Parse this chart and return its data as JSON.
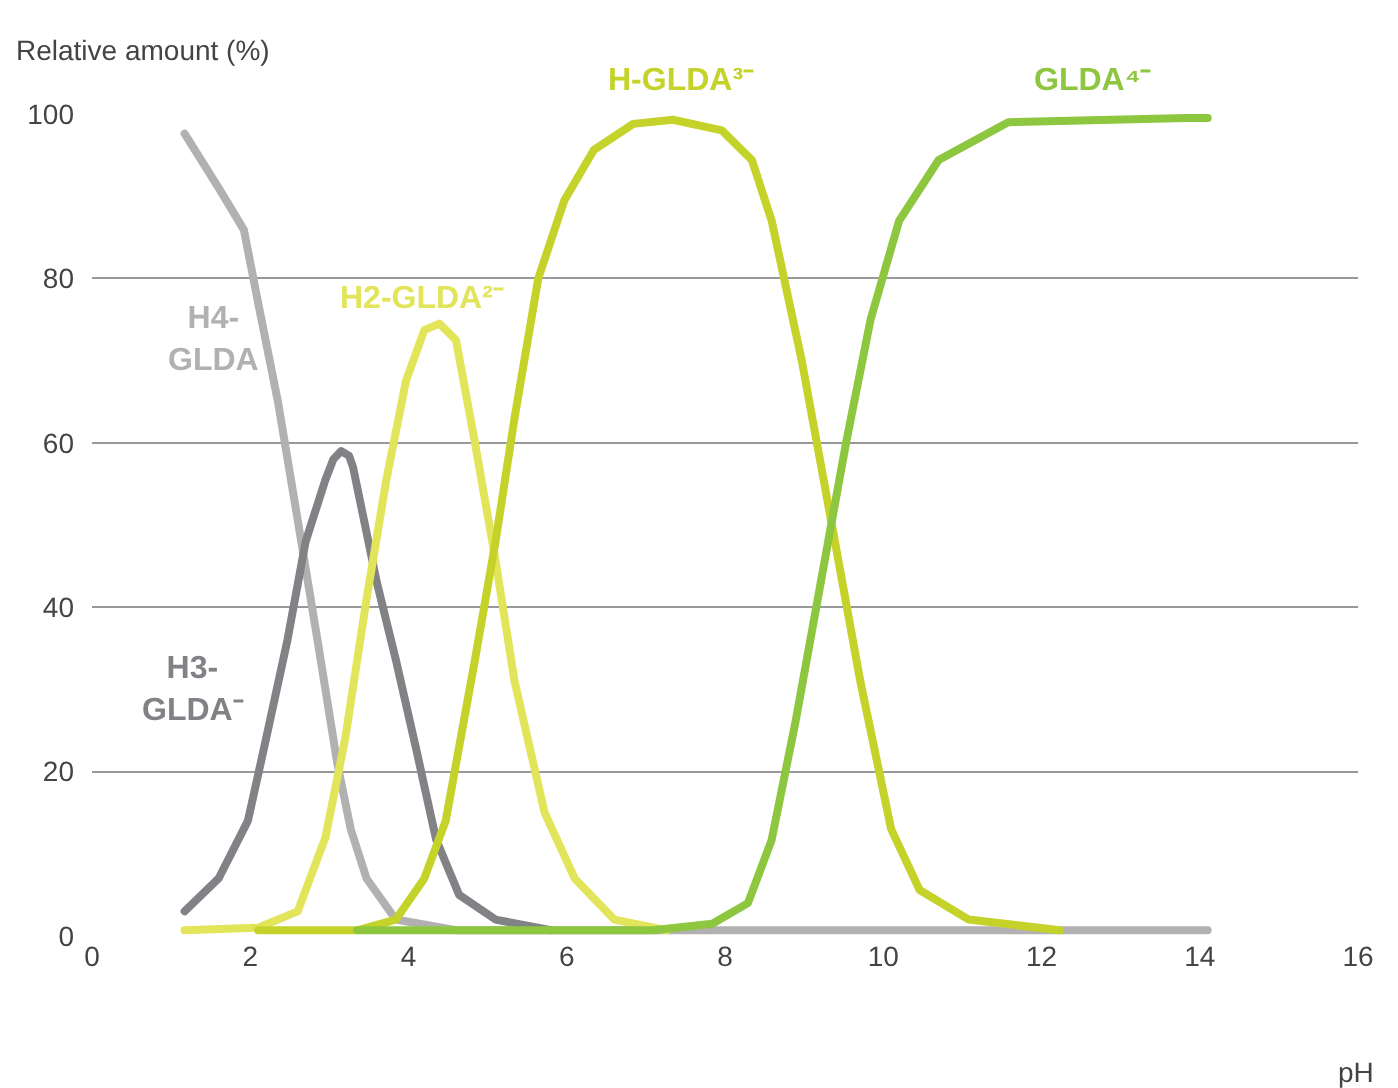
{
  "chart_data": {
    "type": "line",
    "ylabel": "Relative amount (%)",
    "xlabel": "pH",
    "xlim": [
      0,
      16
    ],
    "xticks": [
      0,
      2,
      4,
      6,
      8,
      10,
      12,
      14,
      16
    ],
    "ylim": [
      0,
      100
    ],
    "yticks": [
      0,
      20,
      40,
      60,
      80,
      100
    ],
    "grid": "y",
    "marker": "none",
    "line_style": "solid",
    "series": [
      {
        "color": "#b1b1b1",
        "x": [
          1.17,
          1.6,
          1.92,
          2.1,
          2.35,
          2.6,
          2.85,
          3.1,
          3.27,
          3.47,
          3.84,
          4.6,
          10,
          12,
          14.1
        ],
        "values": [
          97.6,
          91,
          85.9,
          77,
          65,
          50.6,
          36,
          21,
          13,
          7,
          2,
          0.7,
          0.7,
          0.7,
          0.7
        ]
      },
      {
        "color": "#808285",
        "x": [
          1.17,
          1.6,
          1.97,
          2.2,
          2.47,
          2.7,
          2.95,
          3.05,
          3.15,
          3.25,
          3.3,
          3.6,
          3.84,
          4.1,
          4.35,
          4.64,
          5.1,
          5.8
        ],
        "values": [
          3,
          7,
          14,
          24,
          36,
          48,
          55.5,
          58,
          59,
          58.4,
          57,
          43,
          33.6,
          22.6,
          11.7,
          5,
          2,
          0.7
        ]
      },
      {
        "color": "#e2e55a",
        "x": [
          1.17,
          2.1,
          2.6,
          2.95,
          3.2,
          3.47,
          3.72,
          3.97,
          4.2,
          4.39,
          4.6,
          4.84,
          5.1,
          5.34,
          5.72,
          6.1,
          6.6,
          7.26
        ],
        "values": [
          0.7,
          1,
          3,
          12,
          24,
          41,
          55.5,
          67.6,
          73.7,
          74.5,
          72.5,
          60,
          45.7,
          31,
          15,
          7,
          2,
          0.7
        ]
      },
      {
        "color": "#c5d22a",
        "x": [
          2.1,
          3.35,
          3.84,
          4.2,
          4.47,
          4.84,
          5.1,
          5.34,
          5.64,
          5.97,
          6.34,
          6.84,
          7.34,
          7.96,
          8.34,
          8.59,
          8.97,
          9.34,
          9.71,
          10.1,
          10.46,
          11.08,
          12.23
        ],
        "values": [
          0.7,
          0.7,
          2,
          7,
          14,
          33.6,
          48,
          63,
          80,
          89.5,
          95.6,
          98.8,
          99.3,
          98,
          94.4,
          87,
          70,
          50.6,
          31,
          13,
          5.6,
          2,
          0.7
        ]
      },
      {
        "color": "#8dc63f",
        "x": [
          3.35,
          7.09,
          7.84,
          8.29,
          8.59,
          8.89,
          9.21,
          9.53,
          9.84,
          10.2,
          10.7,
          11.58,
          13.83,
          14.1
        ],
        "values": [
          0.7,
          0.7,
          1.5,
          4,
          11.7,
          26,
          43,
          60,
          75,
          87,
          94.4,
          99,
          99.5,
          99.5
        ]
      }
    ],
    "annotations": [
      "H4-\nGLDA",
      "H3-\nGLDA⁻",
      "H2-GLDA²⁻",
      "H-GLDA³⁻",
      "GLDA⁴⁻"
    ]
  }
}
